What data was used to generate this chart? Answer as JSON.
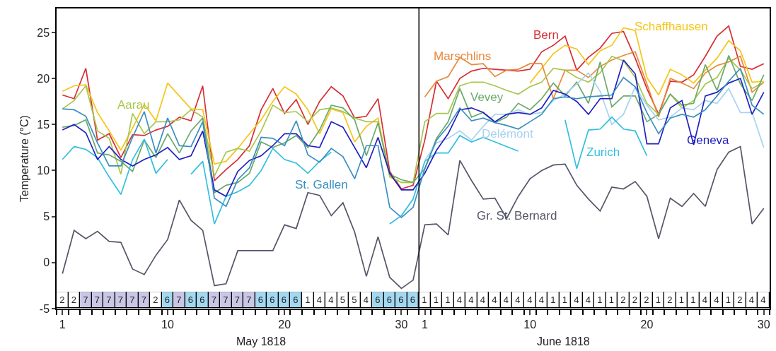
{
  "chart_data": [
    {
      "type": "line",
      "ylabel": "Temperature (°C)",
      "x": [
        "1818-05-01",
        "1818-05-02",
        "1818-05-03",
        "1818-05-04",
        "1818-05-05",
        "1818-05-06",
        "1818-05-07",
        "1818-05-08",
        "1818-05-09",
        "1818-05-10",
        "1818-05-11",
        "1818-05-12",
        "1818-05-13",
        "1818-05-14",
        "1818-05-15",
        "1818-05-16",
        "1818-05-17",
        "1818-05-18",
        "1818-05-19",
        "1818-05-20",
        "1818-05-21",
        "1818-05-22",
        "1818-05-23",
        "1818-05-24",
        "1818-05-25",
        "1818-05-26",
        "1818-05-27",
        "1818-05-28",
        "1818-05-29",
        "1818-05-30",
        "1818-05-31",
        "1818-06-01",
        "1818-06-02",
        "1818-06-03",
        "1818-06-04",
        "1818-06-05",
        "1818-06-06",
        "1818-06-07",
        "1818-06-08",
        "1818-06-09",
        "1818-06-10",
        "1818-06-11",
        "1818-06-12",
        "1818-06-13",
        "1818-06-14",
        "1818-06-15",
        "1818-06-16",
        "1818-06-17",
        "1818-06-18",
        "1818-06-19",
        "1818-06-20",
        "1818-06-21",
        "1818-06-22",
        "1818-06-23",
        "1818-06-24",
        "1818-06-25",
        "1818-06-26",
        "1818-06-27",
        "1818-06-28",
        "1818-06-29",
        "1818-06-30"
      ],
      "series": [
        {
          "name": "Bern",
          "color": "#d62f35",
          "values": [
            18.2,
            17.8,
            21.1,
            13.3,
            14.0,
            11.4,
            13.9,
            13.8,
            14.4,
            14.8,
            15.8,
            15.4,
            19.2,
            8.9,
            10.1,
            11.2,
            12.7,
            16.6,
            18.9,
            16.2,
            17.7,
            15.0,
            17.5,
            19.1,
            18.1,
            15.7,
            15.9,
            17.8,
            9.9,
            8.0,
            8.4,
            13.3,
            19.7,
            17.8,
            20.0,
            20.8,
            21.1,
            21.0,
            20.9,
            20.8,
            21.0,
            22.9,
            23.6,
            24.6,
            20.9,
            22.3,
            23.3,
            24.9,
            25.1,
            22.2,
            18.9,
            16.1,
            19.7,
            19.6,
            20.4,
            22.4,
            24.6,
            25.7,
            21.3,
            21.0,
            21.6
          ]
        },
        {
          "name": "Schaffhausen",
          "color": "#f5c518",
          "values": [
            18.6,
            19.2,
            19.3,
            16.3,
            14.3,
            12.2,
            14.6,
            17.2,
            15.4,
            19.5,
            18.1,
            16.7,
            16.6,
            10.7,
            11.0,
            12.4,
            14.0,
            15.5,
            17.5,
            19.1,
            18.3,
            16.6,
            14.0,
            16.7,
            16.3,
            13.1,
            14.8,
            15.7,
            9.4,
            8.7,
            8.7,
            null,
            null,
            null,
            null,
            null,
            null,
            null,
            null,
            null,
            19.5,
            21.1,
            22.7,
            23.6,
            23.2,
            21.5,
            23.0,
            23.6,
            25.5,
            25.2,
            20.1,
            18.2,
            21.0,
            20.4,
            19.5,
            20.9,
            22.2,
            24.1,
            23.0,
            19.6,
            19.7
          ]
        },
        {
          "name": "Marschlins",
          "color": "#e8893a",
          "values": [
            null,
            null,
            null,
            null,
            null,
            null,
            null,
            null,
            null,
            null,
            null,
            null,
            null,
            null,
            null,
            null,
            null,
            null,
            null,
            null,
            null,
            null,
            null,
            null,
            null,
            null,
            null,
            null,
            null,
            null,
            null,
            18.0,
            19.7,
            20.2,
            22.3,
            21.5,
            21.6,
            20.2,
            20.9,
            21.0,
            21.6,
            21.6,
            17.8,
            20.9,
            20.9,
            20.1,
            21.3,
            22.0,
            22.5,
            22.9,
            19.4,
            15.8,
            20.0,
            19.5,
            18.9,
            20.6,
            21.4,
            21.8,
            22.4,
            18.5,
            19.6
          ]
        },
        {
          "name": "Aarau",
          "color": "#a8c64e",
          "values": [
            16.7,
            17.6,
            19.2,
            14.3,
            13.5,
            9.6,
            16.2,
            14.0,
            15.3,
            15.3,
            15.5,
            16.6,
            15.8,
            9.4,
            12.0,
            12.4,
            12.1,
            14.3,
            17.1,
            16.3,
            16.4,
            15.3,
            16.6,
            16.8,
            16.4,
            15.7,
            15.3,
            15.3,
            9.3,
            8.7,
            8.7,
            15.3,
            16.2,
            16.2,
            19.2,
            19.6,
            19.6,
            19.2,
            18.7,
            18.3,
            19.1,
            19.6,
            21.1,
            20.9,
            20.1,
            19.6,
            20.6,
            22.4,
            21.9,
            20.1,
            17.3,
            16.1,
            18.3,
            16.8,
            17.6,
            19.4,
            20.1,
            22.2,
            20.9,
            18.9,
            19.6
          ]
        },
        {
          "name": "Vevey",
          "color": "#6aaa6a",
          "values": [
            14.7,
            14.9,
            15.5,
            11.9,
            11.7,
            11.0,
            9.9,
            13.3,
            11.4,
            14.0,
            11.9,
            14.3,
            15.7,
            7.6,
            8.4,
            8.7,
            9.7,
            13.1,
            12.5,
            13.0,
            13.8,
            12.5,
            14.4,
            17.1,
            16.8,
            15.5,
            11.6,
            15.2,
            9.6,
            9.0,
            8.7,
            10.2,
            13.5,
            15.3,
            18.9,
            15.8,
            16.3,
            15.2,
            15.8,
            17.3,
            16.6,
            17.8,
            19.5,
            18.1,
            19.6,
            17.3,
            21.8,
            16.9,
            18.1,
            18.1,
            15.3,
            16.1,
            18.3,
            17.1,
            17.3,
            21.5,
            18.7,
            22.5,
            19.4,
            17.6,
            20.4
          ]
        },
        {
          "name": "Delémont",
          "color": "#a9d3ee",
          "values": [
            null,
            null,
            null,
            null,
            null,
            null,
            null,
            null,
            null,
            null,
            null,
            null,
            null,
            null,
            null,
            null,
            null,
            null,
            null,
            null,
            null,
            null,
            null,
            null,
            null,
            null,
            null,
            null,
            null,
            null,
            null,
            11.1,
            13.0,
            13.5,
            14.3,
            13.3,
            14.8,
            16.1,
            16.1,
            16.6,
            16.1,
            16.3,
            17.6,
            18.3,
            19.4,
            20.6,
            18.6,
            15.0,
            16.1,
            19.1,
            17.1,
            15.5,
            15.8,
            16.8,
            16.6,
            17.6,
            17.3,
            18.9,
            16.3,
            16.3,
            12.5
          ]
        },
        {
          "name": "Zurich",
          "color": "#33bfe0",
          "values": [
            11.2,
            12.6,
            12.3,
            11.4,
            9.3,
            7.4,
            11.2,
            13.4,
            9.7,
            11.2,
            null,
            9.6,
            11.0,
            4.2,
            7.2,
            7.7,
            8.4,
            10.0,
            12.4,
            11.2,
            10.8,
            9.7,
            11.0,
            12.0,
            null,
            null,
            null,
            null,
            4.2,
            5.1,
            6.9,
            11.0,
            11.9,
            11.9,
            13.8,
            13.1,
            13.6,
            13.1,
            12.6,
            12.1,
            null,
            null,
            null,
            15.5,
            10.2,
            14.4,
            14.5,
            15.8,
            14.5,
            14.3,
            11.6,
            null,
            null,
            null,
            null,
            null,
            null,
            null,
            null,
            null,
            null
          ]
        },
        {
          "name": "Geneva",
          "color": "#2020c0",
          "values": [
            14.4,
            15.0,
            14.1,
            11.2,
            12.6,
            11.2,
            10.5,
            11.2,
            11.7,
            12.5,
            11.2,
            11.6,
            14.3,
            7.9,
            7.2,
            9.9,
            11.1,
            11.6,
            12.7,
            14.0,
            14.0,
            12.7,
            12.5,
            15.3,
            14.7,
            12.5,
            10.3,
            13.6,
            9.7,
            7.9,
            7.9,
            9.7,
            12.2,
            14.0,
            16.6,
            16.8,
            16.3,
            15.3,
            16.1,
            16.3,
            16.1,
            16.8,
            18.7,
            18.3,
            17.5,
            16.1,
            17.8,
            17.8,
            22.0,
            20.5,
            12.9,
            12.9,
            16.8,
            17.6,
            12.8,
            18.1,
            18.5,
            19.5,
            20.0,
            16.1,
            18.5
          ]
        },
        {
          "name": "St. Gallen",
          "color": "#3a8fc0",
          "values": [
            16.7,
            16.6,
            15.9,
            13.0,
            10.5,
            10.5,
            13.6,
            16.4,
            11.9,
            15.7,
            12.7,
            12.6,
            15.3,
            7.0,
            6.1,
            9.0,
            10.3,
            13.6,
            13.5,
            12.7,
            15.4,
            11.7,
            10.9,
            12.4,
            11.5,
            9.1,
            12.7,
            12.7,
            6.0,
            4.9,
            6.0,
            10.2,
            13.3,
            14.8,
            16.8,
            15.4,
            15.7,
            15.2,
            14.9,
            14.5,
            15.3,
            16.1,
            17.8,
            18.0,
            17.8,
            18.0,
            18.1,
            18.2,
            20.1,
            19.1,
            16.3,
            14.0,
            15.7,
            16.1,
            15.8,
            16.6,
            18.1,
            19.7,
            21.1,
            17.1,
            16.1
          ]
        },
        {
          "name": "Gr. St. Bernard",
          "color": "#55566a",
          "values": [
            -1.2,
            3.5,
            2.6,
            3.4,
            2.3,
            2.2,
            -0.7,
            -1.3,
            0.8,
            2.5,
            6.8,
            4.6,
            3.5,
            -2.5,
            -2.3,
            1.3,
            1.3,
            1.3,
            1.3,
            4.1,
            3.7,
            7.6,
            7.3,
            5.1,
            6.5,
            3.3,
            -1.5,
            2.8,
            -1.6,
            -2.8,
            -1.9,
            4.1,
            4.2,
            3.0,
            11.1,
            8.9,
            6.9,
            7.0,
            4.8,
            7.2,
            9.1,
            10.0,
            10.6,
            10.7,
            8.4,
            6.9,
            5.6,
            8.2,
            8.0,
            8.8,
            7.2,
            2.6,
            7.0,
            6.1,
            7.5,
            6.1,
            10.1,
            12.0,
            12.6,
            4.2,
            5.9
          ]
        }
      ],
      "annotations": [
        "May 1818",
        "June 1818"
      ],
      "xlim": [
        "1818-04-30T12:00",
        "1818-06-30T12:00"
      ],
      "xticks": [
        {
          "value": "1818-05-01",
          "label": "1"
        },
        {
          "value": "1818-05-10",
          "label": "10"
        },
        {
          "value": "1818-05-20",
          "label": "20"
        },
        {
          "value": "1818-05-30",
          "label": "30"
        },
        {
          "value": "1818-06-01",
          "label": "1"
        },
        {
          "value": "1818-06-10",
          "label": "10"
        },
        {
          "value": "1818-06-20",
          "label": "20"
        },
        {
          "value": "1818-06-30",
          "label": "30"
        }
      ],
      "ylim": [
        -5,
        27.6
      ],
      "yticks": [
        -5,
        0,
        5,
        10,
        15,
        20,
        25
      ],
      "ref_lines": [
        {
          "axis": "x",
          "value": "1818-05-31T12:00",
          "color": "#000000"
        }
      ]
    },
    {
      "type": "other",
      "annotations": [
        "2",
        "2",
        "7",
        "7",
        "7",
        "7",
        "7",
        "7",
        "2",
        "6",
        "7",
        "6",
        "6",
        "7",
        "7",
        "7",
        "7",
        "6",
        "6",
        "6",
        "6",
        "1",
        "4",
        "4",
        "5",
        "5",
        "4",
        "6",
        "6",
        "6",
        "6",
        "1",
        "1",
        "1",
        "4",
        "4",
        "4",
        "4",
        "4",
        "4",
        "4",
        "4",
        "1",
        "1",
        "4",
        "4",
        "1",
        "1",
        "2",
        "2",
        "2",
        "1",
        "2",
        "1",
        "1",
        "4",
        "4",
        "1",
        "2",
        "4",
        "4"
      ],
      "colors": [
        "#ffffff",
        "#ffffff",
        "#cac6e6",
        "#cac6e6",
        "#cac6e6",
        "#cac6e6",
        "#cac6e6",
        "#cac6e6",
        "#ffffff",
        "#a3d8f0",
        "#cac6e6",
        "#a3d8f0",
        "#a3d8f0",
        "#cac6e6",
        "#cac6e6",
        "#cac6e6",
        "#cac6e6",
        "#a3d8f0",
        "#a3d8f0",
        "#a3d8f0",
        "#a3d8f0",
        "#ffffff",
        "#ffffff",
        "#ffffff",
        "#ffffff",
        "#ffffff",
        "#ffffff",
        "#a3d8f0",
        "#a3d8f0",
        "#a3d8f0",
        "#a3d8f0",
        "#ffffff",
        "#ffffff",
        "#ffffff",
        "#ffffff",
        "#ffffff",
        "#ffffff",
        "#ffffff",
        "#ffffff",
        "#ffffff",
        "#ffffff",
        "#ffffff",
        "#ffffff",
        "#ffffff",
        "#ffffff",
        "#ffffff",
        "#ffffff",
        "#ffffff",
        "#ffffff",
        "#ffffff",
        "#ffffff",
        "#ffffff",
        "#ffffff",
        "#ffffff",
        "#ffffff",
        "#ffffff",
        "#ffffff",
        "#ffffff",
        "#ffffff",
        "#ffffff",
        "#ffffff"
      ]
    }
  ]
}
